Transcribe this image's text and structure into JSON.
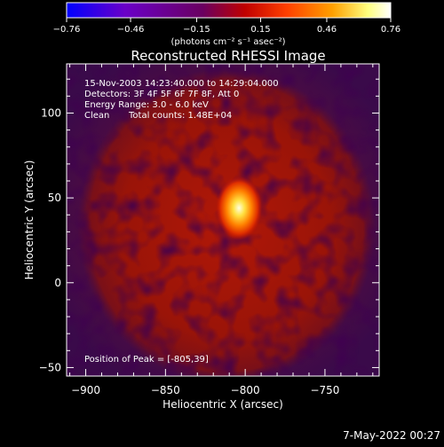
{
  "chart_data": {
    "type": "heatmap",
    "title": "Reconstructed RHESSI Image",
    "xlabel": "Heliocentric X (arcsec)",
    "ylabel": "Heliocentric Y (arcsec)",
    "xlim": [
      -912,
      -716
    ],
    "ylim": [
      -55,
      129
    ],
    "x_ticks": [
      -900,
      -850,
      -800,
      -750
    ],
    "x_tick_labels": [
      "−900",
      "−850",
      "−800",
      "−750"
    ],
    "y_ticks": [
      -50,
      0,
      50,
      100
    ],
    "y_tick_labels": [
      "−50",
      "0",
      "50",
      "100"
    ],
    "colorbar": {
      "range": [
        -0.76,
        0.76
      ],
      "ticks": [
        -0.76,
        -0.46,
        -0.15,
        0.15,
        0.46,
        0.76
      ],
      "tick_labels": [
        "−0.76",
        "−0.46",
        "−0.15",
        "0.15",
        "0.46",
        "0.76"
      ],
      "unit_label": "(photons cm⁻² s⁻¹ asec⁻²)",
      "stops": [
        "#0000ff",
        "#6a00c8",
        "#6a0060",
        "#c00000",
        "#ff4000",
        "#ffa000",
        "#ffff80",
        "#ffffff"
      ]
    },
    "annotations": {
      "time_range": "15-Nov-2003 14:23:40.000 to 14:29:04.000",
      "detectors": "Detectors: 3F 4F 5F 6F 7F 8F, Att 0",
      "energy_range": "Energy Range: 3.0 - 6.0 keV",
      "clean_label": "Clean",
      "total_counts": "Total counts: 1.48E+04",
      "peak_position": "Position of Peak = [-805,39]"
    },
    "source": {
      "peak_x": -805,
      "peak_y": 39
    },
    "timestamp": "7-May-2022 00:27"
  }
}
